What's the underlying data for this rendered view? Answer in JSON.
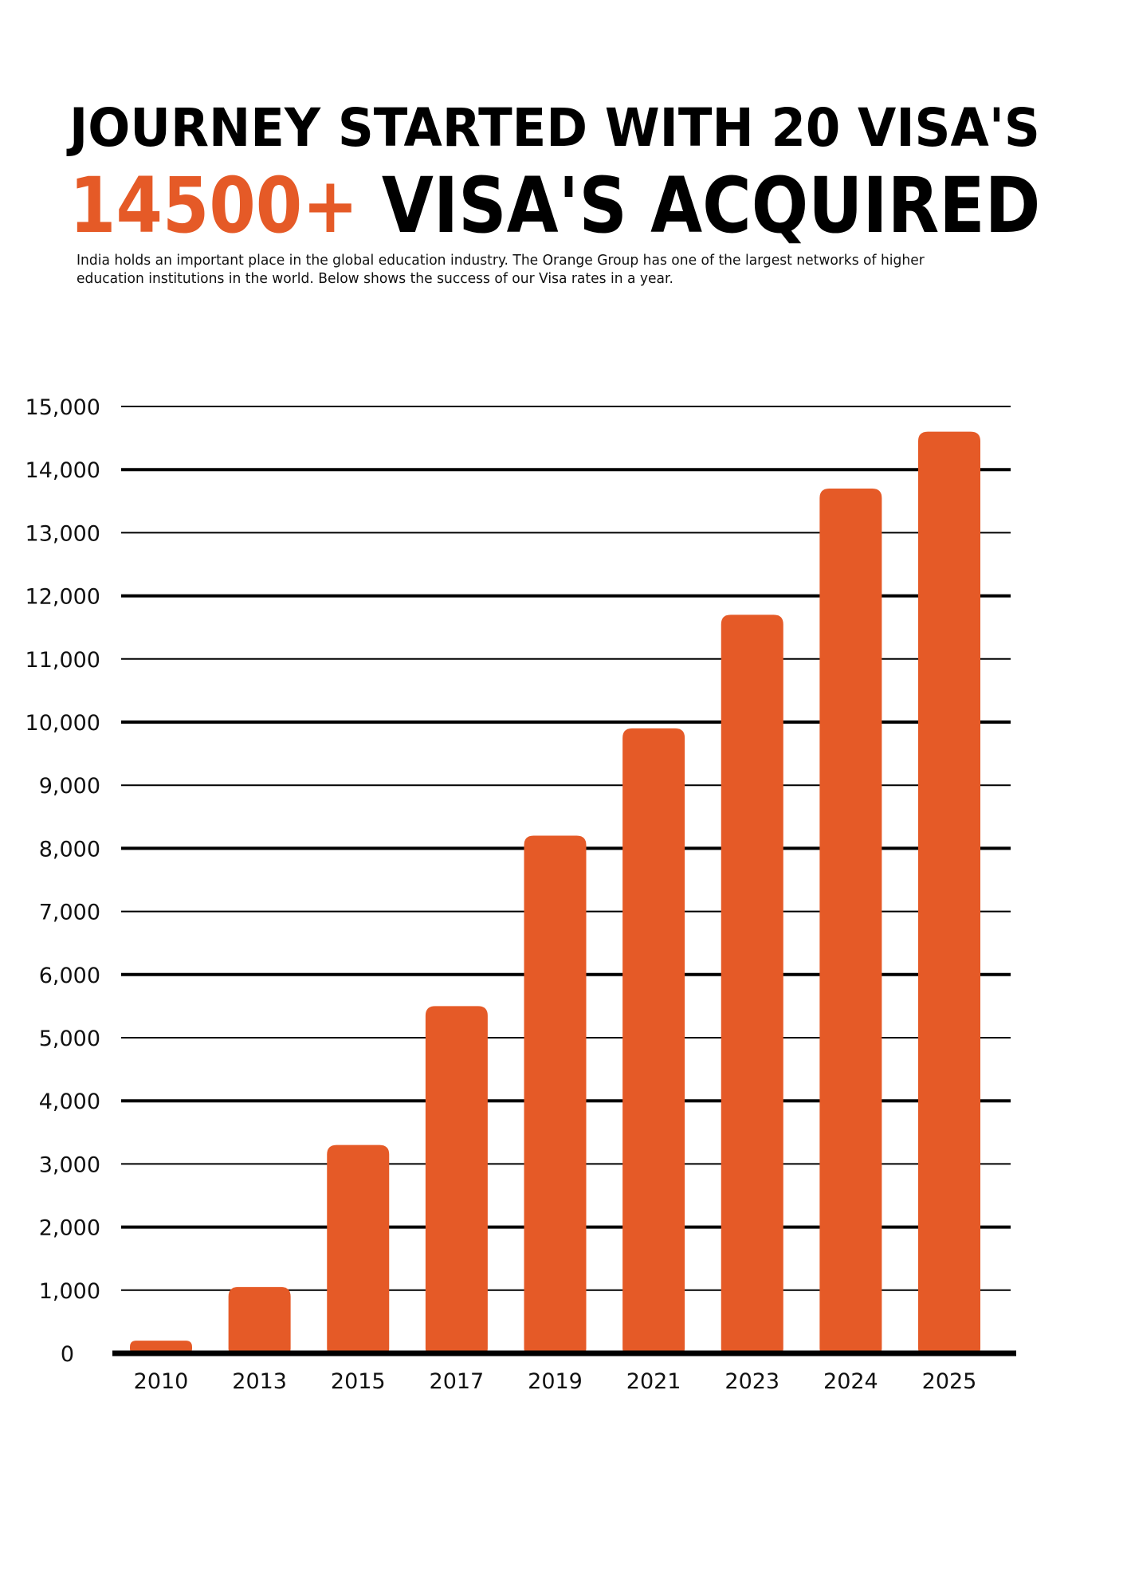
{
  "header": {
    "title_line1": "JOURNEY STARTED WITH 20 VISA'S",
    "title_line2_highlight": "14500+",
    "title_line2_rest": " VISA'S ACQUIRED",
    "description_lines": [
      "India holds an important place in the global education industry. The Orange Group has one of the largest networks of higher",
      "education institutions in the world. Below shows the success of our Visa rates in a year."
    ]
  },
  "colors": {
    "accent": "#E55A27",
    "text": "#000000",
    "grid": "#000000",
    "background": "#FFFFFF"
  },
  "chart_data": {
    "type": "bar",
    "title": "",
    "xlabel": "",
    "ylabel": "",
    "categories": [
      "2010",
      "2013",
      "2015",
      "2017",
      "2019",
      "2021",
      "2023",
      "2024",
      "2025"
    ],
    "values": [
      200,
      1050,
      3300,
      5500,
      8200,
      9900,
      11700,
      13700,
      14600
    ],
    "ylim": [
      0,
      15000
    ],
    "yticks": [
      0,
      1000,
      2000,
      3000,
      4000,
      5000,
      6000,
      7000,
      8000,
      9000,
      10000,
      11000,
      12000,
      13000,
      14000,
      15000
    ],
    "ytick_labels": [
      "0",
      "1,000",
      "2,000",
      "3,000",
      "4,000",
      "5,000",
      "6,000",
      "7,000",
      "8,000",
      "9,000",
      "10,000",
      "11,000",
      "12,000",
      "13,000",
      "14,000",
      "15,000"
    ],
    "grid": true,
    "legend": "none",
    "bar_color": "#E55A27"
  }
}
